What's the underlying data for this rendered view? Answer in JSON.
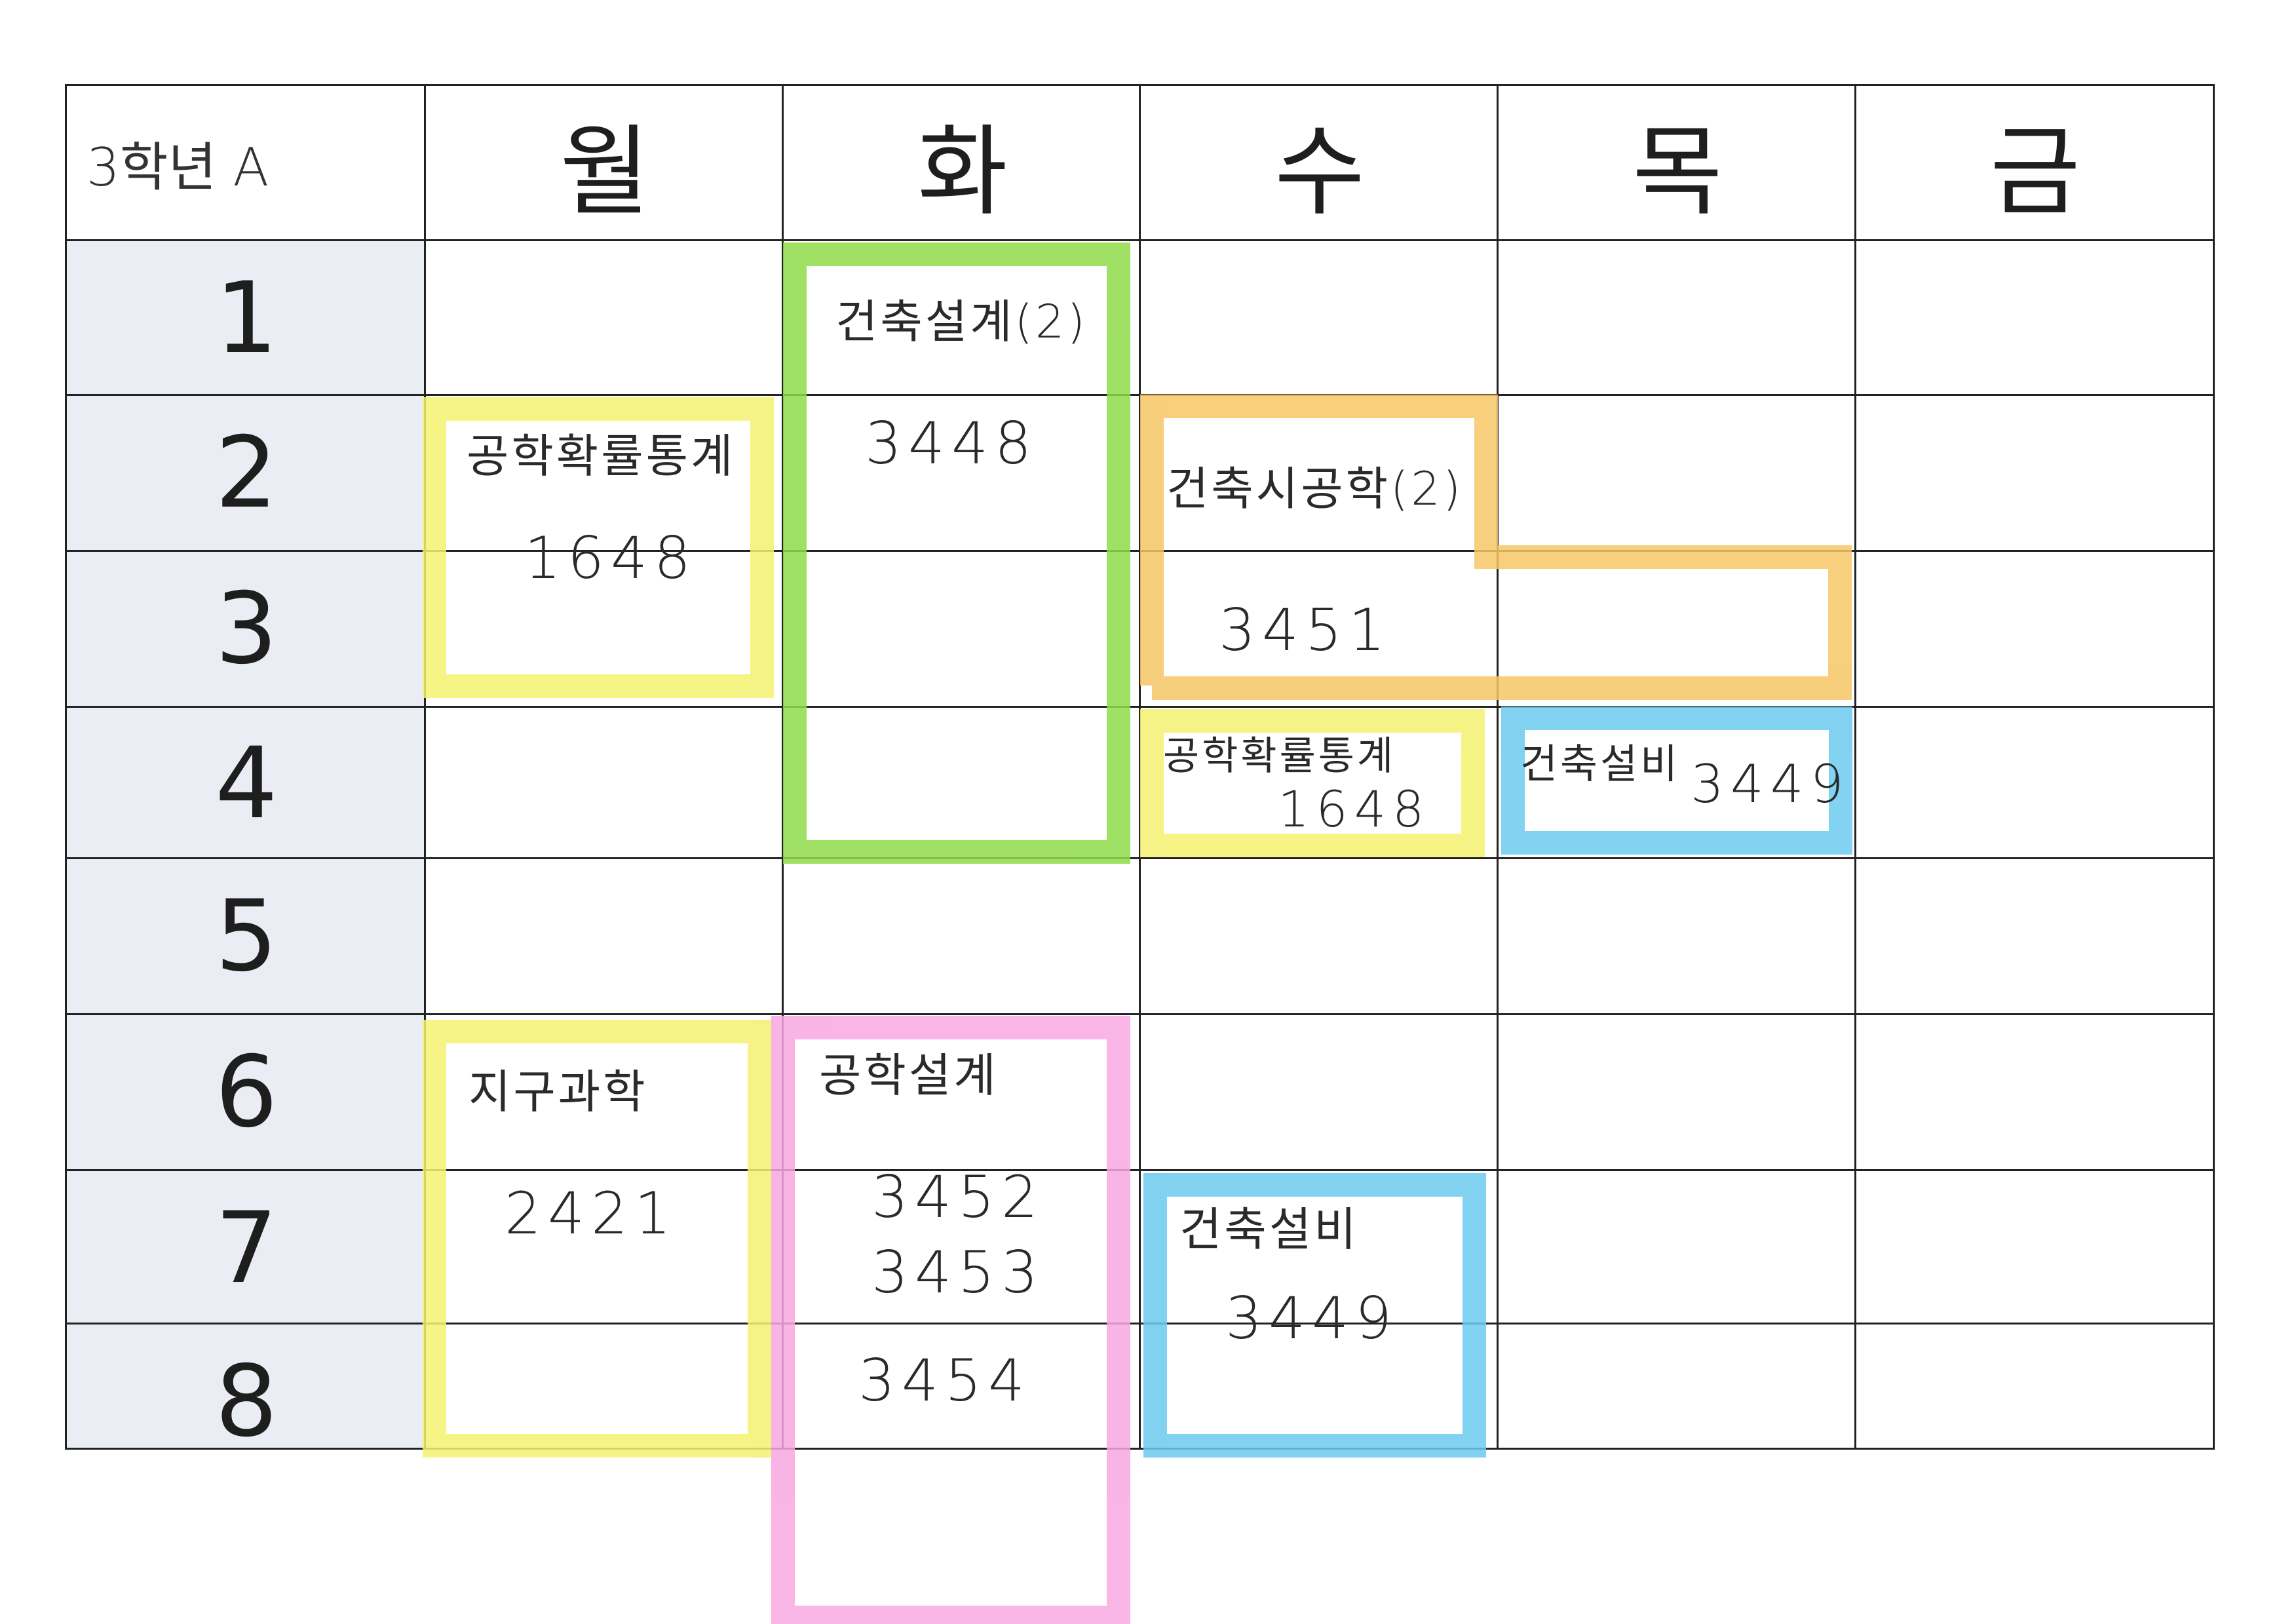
{
  "header": {
    "corner_label": "3학년 A",
    "days": [
      "월",
      "화",
      "수",
      "목",
      "금"
    ]
  },
  "periods": [
    "1",
    "2",
    "3",
    "4",
    "5",
    "6",
    "7",
    "8"
  ],
  "colors": {
    "green": "#8fdc4a",
    "yellow": "#f4f270",
    "orange": "#f6c766",
    "blue": "#6ccbee",
    "pink": "#f7a8e0",
    "row_header_bg": "#eaeef4"
  },
  "entries": [
    {
      "day": "화",
      "periods": "1-4",
      "subject": "건축설계(2)",
      "room": "3448",
      "color": "green"
    },
    {
      "day": "월",
      "periods": "2-3",
      "subject": "공학확률통계",
      "room": "1648",
      "color": "yellow"
    },
    {
      "day": "수",
      "periods": "2-3",
      "subject": "건축시공학(2)",
      "room": "3451",
      "color": "orange"
    },
    {
      "day": "수",
      "periods": "4",
      "subject": "공학확률통계",
      "room": "1648",
      "color": "yellow"
    },
    {
      "day": "목",
      "periods": "4",
      "subject": "건축설비",
      "room": "3449",
      "color": "blue"
    },
    {
      "day": "월",
      "periods": "6-8",
      "subject": "지구과학",
      "room": "2421",
      "color": "yellow"
    },
    {
      "day": "화",
      "periods": "6-8",
      "subject": "공학설계",
      "rooms": [
        "3452",
        "3453",
        "3454"
      ],
      "color": "pink"
    },
    {
      "day": "수",
      "periods": "7-8",
      "subject": "건축설비",
      "room": "3449",
      "color": "blue"
    }
  ]
}
